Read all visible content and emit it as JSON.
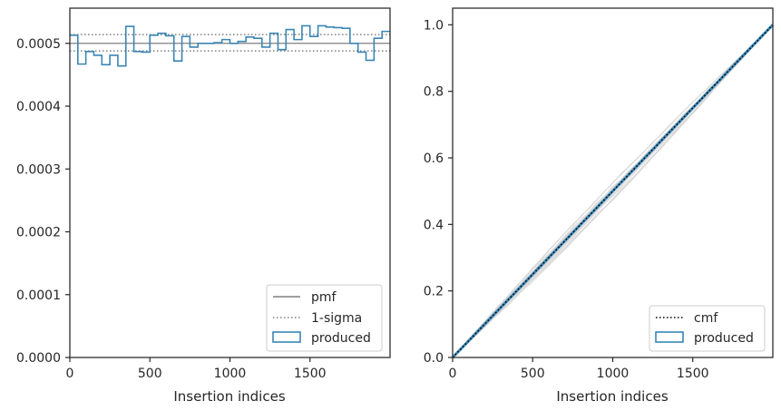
{
  "chart_data": [
    {
      "type": "line",
      "panel": "left",
      "xlabel": "Insertion indices",
      "ylabel": "",
      "xlim": [
        0,
        2000
      ],
      "ylim": [
        0,
        0.000556
      ],
      "xticks": [
        0,
        500,
        1000,
        1500
      ],
      "xtick_labels": [
        "0",
        "500",
        "1000",
        "1500"
      ],
      "yticks": [
        0,
        0.0001,
        0.0002,
        0.0003,
        0.0004,
        0.0005
      ],
      "ytick_labels": [
        "0.0000",
        "0.0001",
        "0.0002",
        "0.0003",
        "0.0004",
        "0.0005"
      ],
      "grid": false,
      "legend_position": "lower-right",
      "legend": [
        "pmf",
        "1-sigma",
        "produced"
      ],
      "series": [
        {
          "name": "pmf",
          "style": "solid",
          "color": "#7f7f7f",
          "y": 0.0005
        },
        {
          "name": "1-sigma",
          "style": "dotted",
          "color": "#7f7f7f",
          "y_values": [
            0.000488,
            0.000514
          ]
        },
        {
          "name": "produced",
          "style": "step",
          "color": "#3a86b5",
          "bin_width": 50,
          "bin_starts": [
            0,
            50,
            100,
            150,
            200,
            250,
            300,
            350,
            400,
            450,
            500,
            550,
            600,
            650,
            700,
            750,
            800,
            850,
            900,
            950,
            1000,
            1050,
            1100,
            1150,
            1200,
            1250,
            1300,
            1350,
            1400,
            1450,
            1500,
            1550,
            1600,
            1650,
            1700,
            1750,
            1800,
            1850,
            1900,
            1950
          ],
          "values": [
            0.000513,
            0.000467,
            0.000487,
            0.000481,
            0.000466,
            0.000481,
            0.000464,
            0.000527,
            0.000487,
            0.000486,
            0.000513,
            0.000516,
            0.000512,
            0.000472,
            0.000511,
            0.000494,
            0.0005,
            0.0005,
            0.000501,
            0.000506,
            0.0005,
            0.000503,
            0.00051,
            0.000508,
            0.000494,
            0.000516,
            0.00049,
            0.000522,
            0.000506,
            0.000528,
            0.000511,
            0.000528,
            0.000526,
            0.000525,
            0.000524,
            0.0005,
            0.000486,
            0.000473,
            0.000508,
            0.000519
          ]
        }
      ]
    },
    {
      "type": "line",
      "panel": "right",
      "xlabel": "Insertion indices",
      "ylabel": "",
      "xlim": [
        0,
        2000
      ],
      "ylim": [
        0,
        1.05
      ],
      "xticks": [
        0,
        500,
        1000,
        1500
      ],
      "xtick_labels": [
        "0",
        "500",
        "1000",
        "1500"
      ],
      "yticks": [
        0,
        0.2,
        0.4,
        0.6,
        0.8,
        1.0
      ],
      "ytick_labels": [
        "0.0",
        "0.2",
        "0.4",
        "0.6",
        "0.8",
        "1.0"
      ],
      "grid": false,
      "legend_position": "lower-right",
      "legend": [
        "cmf",
        "produced"
      ],
      "series": [
        {
          "name": "cmf",
          "style": "dotted",
          "color": "#000000",
          "x": [
            0,
            2000
          ],
          "y": [
            0,
            1
          ]
        },
        {
          "name": "produced",
          "style": "solid",
          "color": "#3a86b5",
          "x": [
            0,
            2000
          ],
          "y": [
            0,
            1
          ]
        }
      ],
      "background_curves": {
        "color": "#d3d3d3",
        "count": 20,
        "max_deviation": 0.03
      }
    }
  ]
}
